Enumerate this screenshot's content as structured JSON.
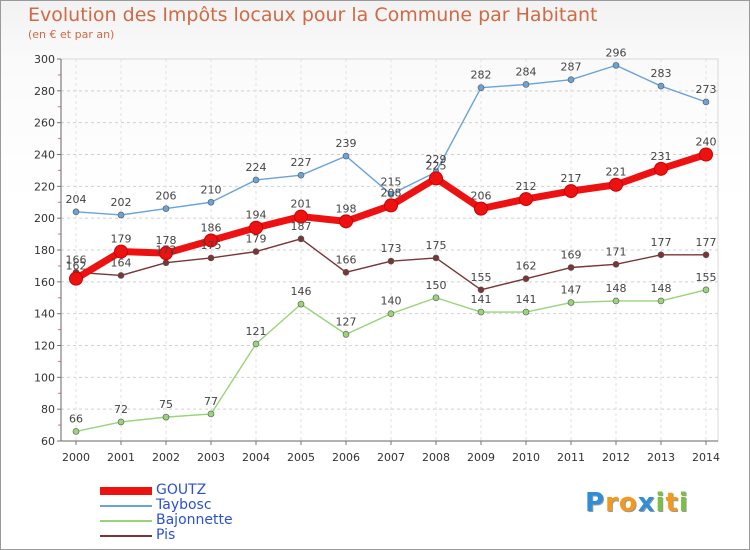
{
  "chart_data": {
    "type": "line",
    "title": "Evolution des Impôts locaux pour la Commune par Habitant",
    "subtitle": "(en € et par an)",
    "xlabel": "",
    "ylabel": "",
    "x": [
      "2000",
      "2001",
      "2002",
      "2003",
      "2004",
      "2005",
      "2006",
      "2007",
      "2008",
      "2009",
      "2010",
      "2011",
      "2012",
      "2013",
      "2014"
    ],
    "ylim": [
      60,
      300
    ],
    "yticks": [
      60,
      80,
      100,
      120,
      140,
      160,
      180,
      200,
      220,
      240,
      260,
      280,
      300
    ],
    "legend_position": "bottom-left",
    "series": [
      {
        "name": "GOUTZ",
        "color": "#ee1111",
        "values": [
          162,
          179,
          178,
          186,
          194,
          201,
          198,
          208,
          225,
          206,
          212,
          217,
          221,
          231,
          240
        ]
      },
      {
        "name": "Taybosc",
        "color": "#6aa3d8",
        "values": [
          204,
          202,
          206,
          210,
          224,
          227,
          239,
          215,
          229,
          282,
          284,
          287,
          296,
          283,
          273
        ]
      },
      {
        "name": "Bajonnette",
        "color": "#99d37a",
        "values": [
          66,
          72,
          75,
          77,
          121,
          146,
          127,
          140,
          150,
          141,
          141,
          147,
          148,
          148,
          155
        ]
      },
      {
        "name": "Pis",
        "color": "#7a3535",
        "values": [
          166,
          164,
          172,
          175,
          179,
          187,
          166,
          173,
          175,
          155,
          162,
          169,
          171,
          177,
          177
        ]
      }
    ]
  },
  "logo": {
    "letters": [
      "P",
      "r",
      "o",
      "x",
      "i",
      "t",
      "i"
    ],
    "colors": [
      "#2f8ed8",
      "#f39a1e",
      "#f39a1e",
      "#2f8ed8",
      "#7bc043",
      "#f39a1e",
      "#7bc043"
    ]
  }
}
